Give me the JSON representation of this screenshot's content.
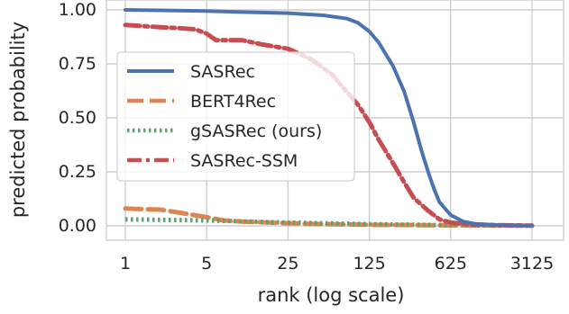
{
  "chart_data": {
    "type": "line",
    "title": "",
    "xlabel": "rank (log scale)",
    "ylabel": "predicted probability",
    "x_scale": "log",
    "xlim": [
      1,
      3125
    ],
    "ylim": [
      0,
      1
    ],
    "x_ticks": [
      1,
      5,
      25,
      125,
      625,
      3125
    ],
    "x_tick_labels": [
      "1",
      "5",
      "25",
      "125",
      "625",
      "3125"
    ],
    "y_ticks": [
      0,
      0.25,
      0.5,
      0.75,
      1.0
    ],
    "y_tick_labels": [
      "0.00",
      "0.25",
      "0.50",
      "0.75",
      "1.00"
    ],
    "grid": true,
    "legend_position": "center-left",
    "series": [
      {
        "name": "SASRec",
        "color": "#4c72b0",
        "style": "solid",
        "x": [
          1,
          2,
          5,
          10,
          25,
          50,
          80,
          100,
          125,
          150,
          200,
          250,
          300,
          350,
          400,
          450,
          500,
          625,
          800,
          1000,
          1500,
          2000,
          3125
        ],
        "y": [
          1.0,
          0.998,
          0.995,
          0.99,
          0.985,
          0.975,
          0.96,
          0.94,
          0.9,
          0.85,
          0.74,
          0.62,
          0.48,
          0.35,
          0.25,
          0.17,
          0.11,
          0.05,
          0.02,
          0.01,
          0.004,
          0.002,
          0.001
        ]
      },
      {
        "name": "BERT4Rec",
        "color": "#dd8452",
        "style": "dashed",
        "x": [
          1,
          2,
          3,
          5,
          7,
          10,
          25,
          50,
          125,
          625,
          3125
        ],
        "y": [
          0.08,
          0.075,
          0.06,
          0.04,
          0.025,
          0.02,
          0.012,
          0.008,
          0.005,
          0.002,
          0.001
        ]
      },
      {
        "name": "gSASRec (ours)",
        "color": "#55a868",
        "style": "dotted",
        "x": [
          1,
          5,
          25,
          125,
          625,
          3125
        ],
        "y": [
          0.03,
          0.025,
          0.015,
          0.008,
          0.003,
          0.001
        ]
      },
      {
        "name": "SASRec-SSM",
        "color": "#c44e52",
        "style": "dashdot",
        "x": [
          1,
          2,
          3,
          4,
          5,
          6,
          10,
          15,
          25,
          40,
          60,
          80,
          100,
          125,
          150,
          200,
          250,
          300,
          400,
          500,
          625,
          1000,
          3125
        ],
        "y": [
          0.93,
          0.92,
          0.915,
          0.91,
          0.89,
          0.86,
          0.86,
          0.84,
          0.82,
          0.77,
          0.7,
          0.62,
          0.56,
          0.48,
          0.4,
          0.29,
          0.2,
          0.13,
          0.07,
          0.03,
          0.015,
          0.005,
          0.001
        ]
      }
    ]
  }
}
